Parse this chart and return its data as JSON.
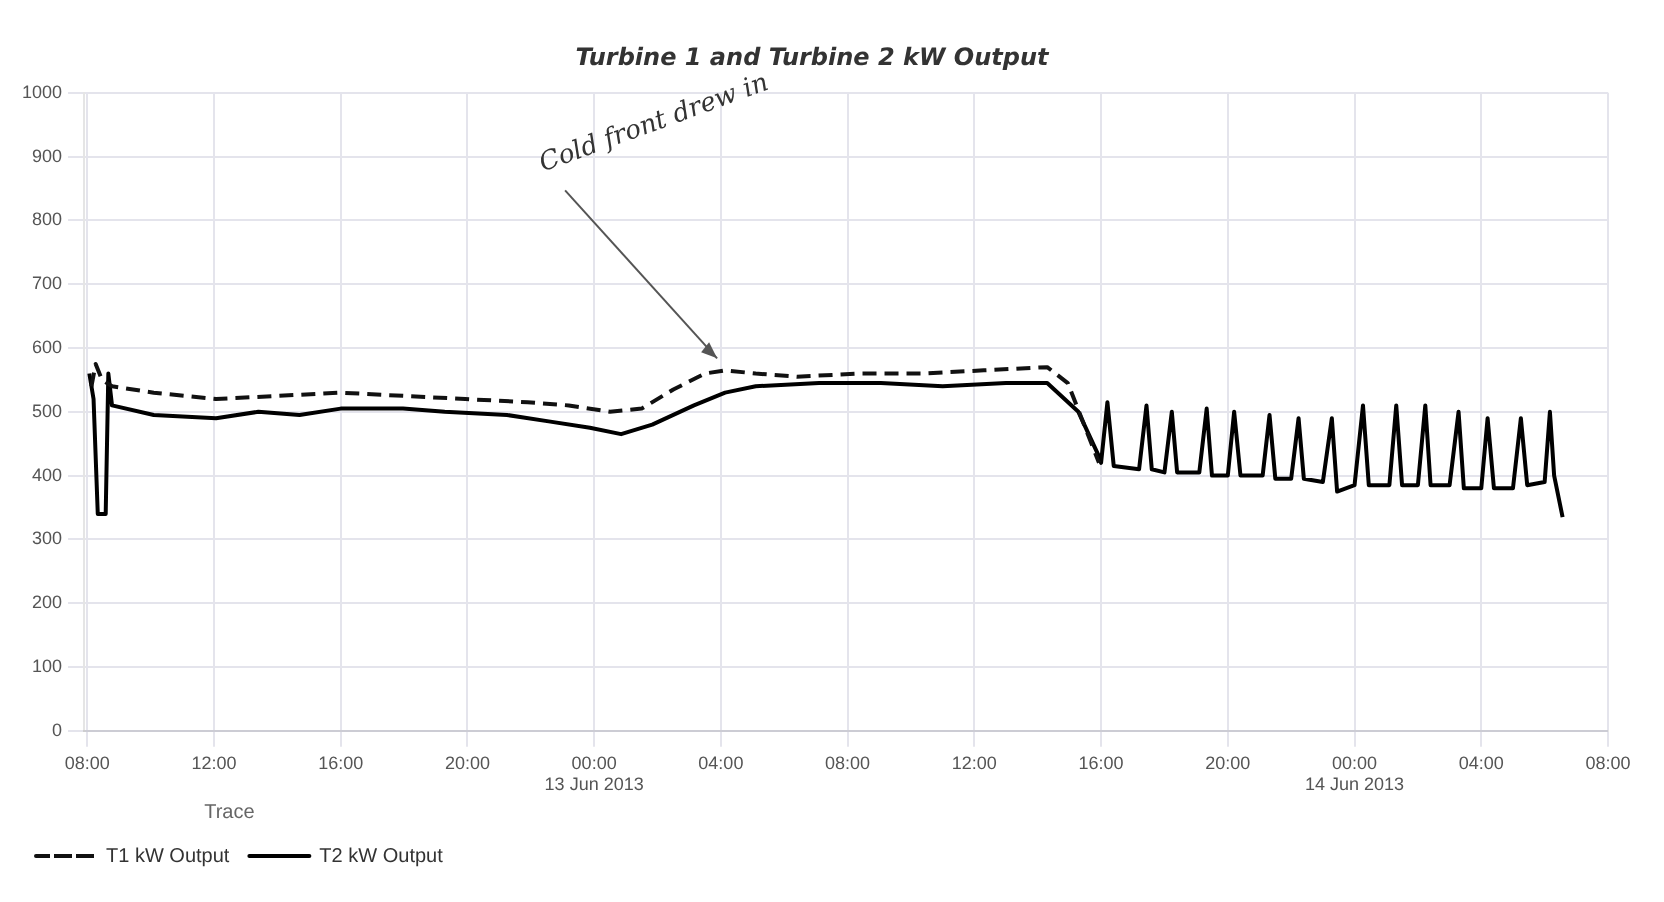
{
  "chart_data": {
    "type": "line",
    "title": "Turbine 1 and Turbine 2 kW Output",
    "legend_title": "Trace",
    "legend": "bottom",
    "grid": true,
    "marker": "none",
    "xlim": [
      "2013-06-12T07:54",
      "2013-06-14T08:00"
    ],
    "ylim": [
      0,
      1000
    ],
    "xticks": [
      {
        "value": "2013-06-12T08:00",
        "label": "08:00"
      },
      {
        "value": "2013-06-12T12:00",
        "label": "12:00"
      },
      {
        "value": "2013-06-12T16:00",
        "label": "16:00"
      },
      {
        "value": "2013-06-12T20:00",
        "label": "20:00"
      },
      {
        "value": "2013-06-13T00:00",
        "label": "00:00\n13 Jun 2013"
      },
      {
        "value": "2013-06-13T04:00",
        "label": "04:00"
      },
      {
        "value": "2013-06-13T08:00",
        "label": "08:00"
      },
      {
        "value": "2013-06-13T12:00",
        "label": "12:00"
      },
      {
        "value": "2013-06-13T16:00",
        "label": "16:00"
      },
      {
        "value": "2013-06-13T20:00",
        "label": "20:00"
      },
      {
        "value": "2013-06-14T00:00",
        "label": "00:00\n14 Jun 2013"
      },
      {
        "value": "2013-06-14T04:00",
        "label": "04:00"
      },
      {
        "value": "2013-06-14T08:00",
        "label": "08:00"
      }
    ],
    "yticks": [
      0,
      100,
      200,
      300,
      400,
      500,
      600,
      700,
      800,
      900,
      1000
    ],
    "annotations": [
      {
        "text": "Cold front drew in",
        "x": "2013-06-13T04:08",
        "y": 565
      }
    ],
    "series": [
      {
        "name": "T1 kW Output",
        "color": "#111111",
        "line_style": "dashed",
        "x": [
          "2013-06-12T08:08",
          "2013-06-12T08:16",
          "2013-06-12T08:28",
          "2013-06-12T08:47",
          "2013-06-12T10:06",
          "2013-06-12T12:04",
          "2013-06-12T14:02",
          "2013-06-12T16:00",
          "2013-06-12T17:58",
          "2013-06-12T19:56",
          "2013-06-12T21:54",
          "2013-06-12T23:12",
          "2013-06-13T00:30",
          "2013-06-13T01:30",
          "2013-06-13T02:30",
          "2013-06-13T03:30",
          "2013-06-13T04:08",
          "2013-06-13T05:06",
          "2013-06-13T06:24",
          "2013-06-13T08:24",
          "2013-06-13T10:24",
          "2013-06-13T12:18",
          "2013-06-13T14:18",
          "2013-06-13T14:57",
          "2013-06-13T15:56"
        ],
        "values": [
          540,
          575,
          550,
          540,
          530,
          520,
          525,
          530,
          525,
          520,
          515,
          510,
          500,
          505,
          535,
          560,
          565,
          560,
          555,
          560,
          560,
          565,
          570,
          545,
          420
        ]
      },
      {
        "name": "T2 kW Output",
        "color": "#000000",
        "line_style": "solid",
        "x": [
          "2013-06-12T08:04",
          "2013-06-12T08:12",
          "2013-06-12T08:20",
          "2013-06-12T08:35",
          "2013-06-12T08:40",
          "2013-06-12T08:47",
          "2013-06-12T10:06",
          "2013-06-12T12:04",
          "2013-06-12T13:24",
          "2013-06-12T14:42",
          "2013-06-12T16:00",
          "2013-06-12T17:58",
          "2013-06-12T19:17",
          "2013-06-12T21:15",
          "2013-06-12T22:34",
          "2013-06-12T23:52",
          "2013-06-13T00:51",
          "2013-06-13T01:50",
          "2013-06-13T03:09",
          "2013-06-13T04:08",
          "2013-06-13T05:06",
          "2013-06-13T07:06",
          "2013-06-13T09:03",
          "2013-06-13T11:00",
          "2013-06-13T13:00",
          "2013-06-13T14:18",
          "2013-06-13T15:17",
          "2013-06-13T15:56",
          "2013-06-13T16:00",
          "2013-06-13T16:12",
          "2013-06-13T16:24",
          "2013-06-13T17:12",
          "2013-06-13T17:26",
          "2013-06-13T17:36",
          "2013-06-13T18:00",
          "2013-06-13T18:14",
          "2013-06-13T18:24",
          "2013-06-13T19:06",
          "2013-06-13T19:20",
          "2013-06-13T19:30",
          "2013-06-13T20:00",
          "2013-06-13T20:12",
          "2013-06-13T20:24",
          "2013-06-13T21:06",
          "2013-06-13T21:19",
          "2013-06-13T21:30",
          "2013-06-13T22:00",
          "2013-06-13T22:14",
          "2013-06-13T22:24",
          "2013-06-13T23:00",
          "2013-06-13T23:17",
          "2013-06-13T23:27",
          "2013-06-14T00:00",
          "2013-06-14T00:16",
          "2013-06-14T00:27",
          "2013-06-14T01:06",
          "2013-06-14T01:19",
          "2013-06-14T01:30",
          "2013-06-14T02:00",
          "2013-06-14T02:14",
          "2013-06-14T02:24",
          "2013-06-14T03:00",
          "2013-06-14T03:17",
          "2013-06-14T03:27",
          "2013-06-14T04:00",
          "2013-06-14T04:12",
          "2013-06-14T04:24",
          "2013-06-14T05:00",
          "2013-06-14T05:15",
          "2013-06-14T05:27",
          "2013-06-14T06:00",
          "2013-06-14T06:10",
          "2013-06-14T06:18",
          "2013-06-14T06:34"
        ],
        "values": [
          560,
          520,
          340,
          340,
          560,
          510,
          495,
          490,
          500,
          495,
          505,
          505,
          500,
          495,
          485,
          475,
          465,
          480,
          510,
          530,
          540,
          545,
          545,
          540,
          545,
          545,
          500,
          430,
          420,
          515,
          415,
          410,
          510,
          410,
          405,
          500,
          405,
          405,
          505,
          400,
          400,
          500,
          400,
          400,
          495,
          395,
          395,
          490,
          395,
          390,
          490,
          375,
          385,
          510,
          385,
          385,
          510,
          385,
          385,
          510,
          385,
          385,
          500,
          380,
          380,
          490,
          380,
          380,
          490,
          385,
          390,
          500,
          400,
          335
        ]
      }
    ]
  }
}
